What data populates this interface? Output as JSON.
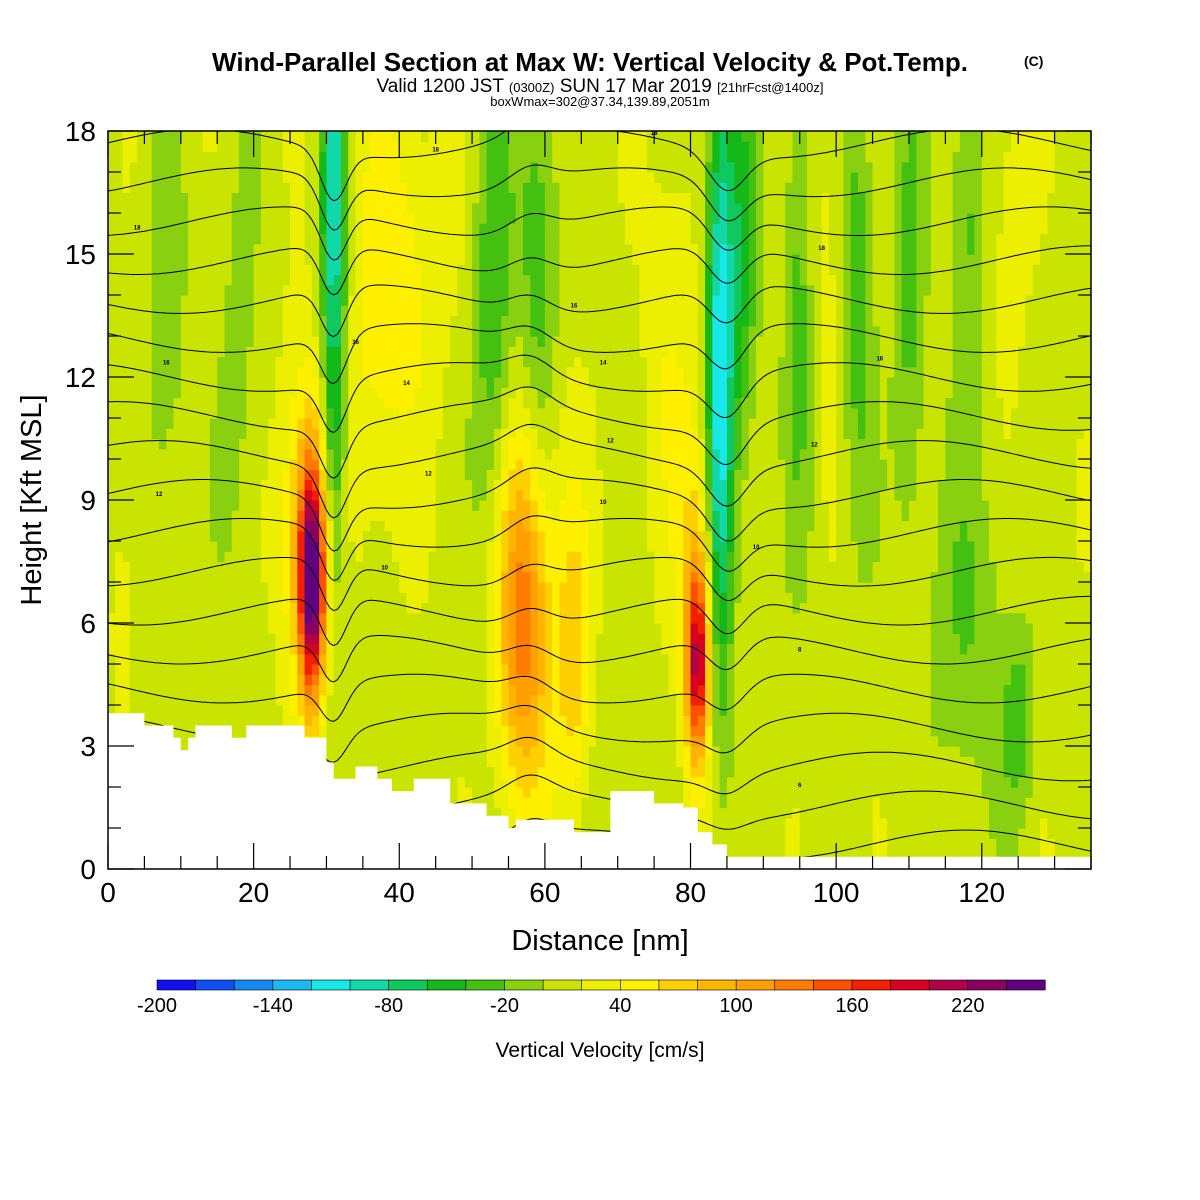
{
  "chart_data": {
    "type": "heatmap",
    "title": "Wind-Parallel Section at Max W: Vertical Velocity & Pot.Temp.",
    "title_mark": "(C)",
    "subtitle_parts": [
      "Valid 1200 JST",
      "(0300Z)",
      "SUN 17 Mar 2019",
      "[21hrFcst@1400z]"
    ],
    "subtitle2": "boxWmax=302@37.34,139.89,2051m",
    "xlabel": "Distance [nm]",
    "ylabel": "Height [Kft MSL]",
    "xlim": [
      0,
      135
    ],
    "ylim": [
      0,
      18
    ],
    "xticks": [
      0,
      20,
      40,
      60,
      80,
      100,
      120
    ],
    "yticks": [
      0,
      3,
      6,
      9,
      12,
      15,
      18
    ],
    "colorbar": {
      "label": "Vertical Velocity [cm/s]",
      "min": -200,
      "max": 240,
      "step": 20,
      "tick_labels": [
        -200,
        -140,
        -80,
        -20,
        40,
        100,
        160,
        220
      ],
      "colors": [
        "#1010f0",
        "#1050f0",
        "#1488f0",
        "#1cb8f0",
        "#18e8e8",
        "#10d8a8",
        "#10c860",
        "#14b818",
        "#44c010",
        "#88d010",
        "#c8e400",
        "#ecf000",
        "#fff000",
        "#ffd000",
        "#ffb400",
        "#ffa000",
        "#ff7c00",
        "#ff5000",
        "#f02000",
        "#d80020",
        "#b00048",
        "#880060",
        "#600080"
      ]
    },
    "velocity_features": [
      {
        "x": 28,
        "z": 7.0,
        "sx": 1.3,
        "sz": 2.0,
        "w": 230
      },
      {
        "x": 27,
        "z": 8.5,
        "sx": 2.5,
        "sz": 3.0,
        "w": 60
      },
      {
        "x": 31,
        "z": 12.5,
        "sx": 1.2,
        "sz": 4.5,
        "w": -90
      },
      {
        "x": 31,
        "z": 17,
        "sx": 1.2,
        "sz": 2.0,
        "w": -60
      },
      {
        "x": 37,
        "z": 13,
        "sx": 3.5,
        "sz": 4.0,
        "w": 30
      },
      {
        "x": 42,
        "z": 15,
        "sx": 4.0,
        "sz": 3.0,
        "w": 25
      },
      {
        "x": 57,
        "z": 6,
        "sx": 2.5,
        "sz": 3.0,
        "w": 95
      },
      {
        "x": 58,
        "z": 8,
        "sx": 4.0,
        "sz": 4.0,
        "w": 40
      },
      {
        "x": 64,
        "z": 5,
        "sx": 1.5,
        "sz": 2.5,
        "w": 55
      },
      {
        "x": 53,
        "z": 13,
        "sx": 2.0,
        "sz": 4.5,
        "w": -55
      },
      {
        "x": 59,
        "z": 14,
        "sx": 2.0,
        "sz": 4.5,
        "w": -55
      },
      {
        "x": 81,
        "z": 5,
        "sx": 1.1,
        "sz": 1.6,
        "w": 160
      },
      {
        "x": 81,
        "z": 7,
        "sx": 1.8,
        "sz": 3.0,
        "w": 60
      },
      {
        "x": 84,
        "z": 12,
        "sx": 1.3,
        "sz": 5.5,
        "w": -130
      },
      {
        "x": 87,
        "z": 15,
        "sx": 1.5,
        "sz": 3.5,
        "w": -60
      },
      {
        "x": 77,
        "z": 13,
        "sx": 2.5,
        "sz": 4.0,
        "w": 25
      },
      {
        "x": 95,
        "z": 14,
        "sx": 1.5,
        "sz": 4.0,
        "w": -45
      },
      {
        "x": 103,
        "z": 14,
        "sx": 1.5,
        "sz": 4.0,
        "w": -45
      },
      {
        "x": 98,
        "z": 15,
        "sx": 2.0,
        "sz": 3.0,
        "w": 20
      },
      {
        "x": 110,
        "z": 14,
        "sx": 1.5,
        "sz": 4.0,
        "w": -40
      },
      {
        "x": 118,
        "z": 16,
        "sx": 1.5,
        "sz": 3.0,
        "w": -40
      },
      {
        "x": 124,
        "z": 16,
        "sx": 2.0,
        "sz": 3.0,
        "w": 20
      },
      {
        "x": 8,
        "z": 13,
        "sx": 2.0,
        "sz": 4.0,
        "w": -25
      },
      {
        "x": 18,
        "z": 12,
        "sx": 2.0,
        "sz": 4.0,
        "w": -20
      },
      {
        "x": 118,
        "z": 6,
        "sx": 4.0,
        "sz": 3.0,
        "w": -30
      },
      {
        "x": 125,
        "z": 3.5,
        "sx": 1.5,
        "sz": 1.5,
        "w": -45
      },
      {
        "x": 2,
        "z": 6,
        "sx": 1.0,
        "sz": 1.5,
        "w": 30
      }
    ],
    "terrain": {
      "x": [
        0,
        5,
        5,
        9,
        9,
        10,
        10,
        11,
        11,
        12,
        12,
        17,
        17,
        19,
        19,
        20,
        20,
        27,
        27,
        30,
        30,
        31,
        31,
        34,
        34,
        37,
        37,
        39,
        39,
        42,
        42,
        47,
        47,
        52,
        52,
        55,
        55,
        56,
        56,
        64,
        64,
        69,
        69,
        75,
        75,
        79,
        79,
        81,
        81,
        83,
        83,
        85,
        85,
        135
      ],
      "z": [
        3.8,
        3.8,
        3.5,
        3.5,
        3.2,
        3.2,
        2.9,
        2.9,
        3.2,
        3.2,
        3.5,
        3.5,
        3.2,
        3.2,
        3.5,
        3.5,
        3.5,
        3.5,
        3.2,
        3.2,
        2.6,
        2.6,
        2.2,
        2.2,
        2.5,
        2.5,
        2.2,
        2.2,
        1.9,
        1.9,
        2.2,
        2.2,
        1.6,
        1.6,
        1.3,
        1.3,
        1.0,
        1.0,
        1.2,
        1.2,
        0.9,
        0.9,
        1.9,
        1.9,
        1.6,
        1.6,
        1.5,
        1.5,
        0.9,
        0.9,
        0.6,
        0.6,
        0.3,
        0.3
      ]
    },
    "contour_labels": [
      "18",
      "16",
      "14",
      "12",
      "10",
      "8",
      "6"
    ]
  }
}
